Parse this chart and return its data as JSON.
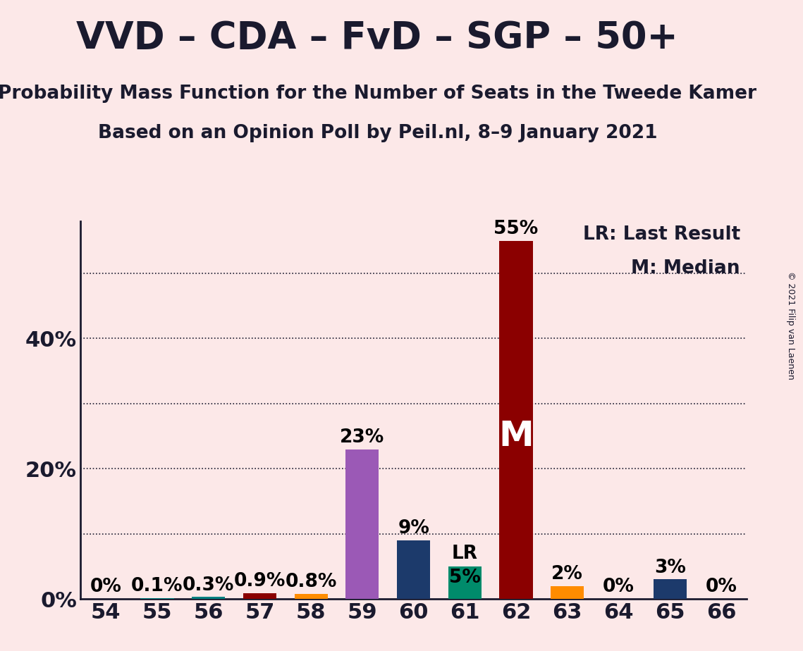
{
  "title": "VVD – CDA – FvD – SGP – 50+",
  "subtitle1": "Probability Mass Function for the Number of Seats in the Tweede Kamer",
  "subtitle2": "Based on an Opinion Poll by Peil.nl, 8–9 January 2021",
  "copyright": "© 2021 Filip van Laenen",
  "background_color": "#fce8e8",
  "categories": [
    54,
    55,
    56,
    57,
    58,
    59,
    60,
    61,
    62,
    63,
    64,
    65,
    66
  ],
  "values": [
    0.0,
    0.1,
    0.3,
    0.9,
    0.8,
    23.0,
    9.0,
    5.0,
    55.0,
    2.0,
    0.0,
    3.0,
    0.0
  ],
  "bar_colors": [
    "#008080",
    "#008080",
    "#008080",
    "#8B0000",
    "#FF8C00",
    "#9B59B6",
    "#1C3A6B",
    "#008B6B",
    "#8B0000",
    "#FF8C00",
    "#FF8C00",
    "#1C3A6B",
    "#1C3A6B"
  ],
  "ylim": [
    0,
    58
  ],
  "ytick_positions": [
    0,
    20,
    40
  ],
  "ytick_labels": [
    "0%",
    "20%",
    "40%"
  ],
  "grid_yticks": [
    10,
    20,
    30,
    40,
    50
  ],
  "median_bar": 62,
  "last_result_bar": 61,
  "legend_text": [
    "LR: Last Result",
    "M: Median"
  ],
  "bar_width": 0.65,
  "title_fontsize": 38,
  "subtitle_fontsize": 19,
  "tick_fontsize": 22,
  "percent_label_fontsize": 19,
  "legend_fontsize": 19,
  "copyright_fontsize": 9
}
